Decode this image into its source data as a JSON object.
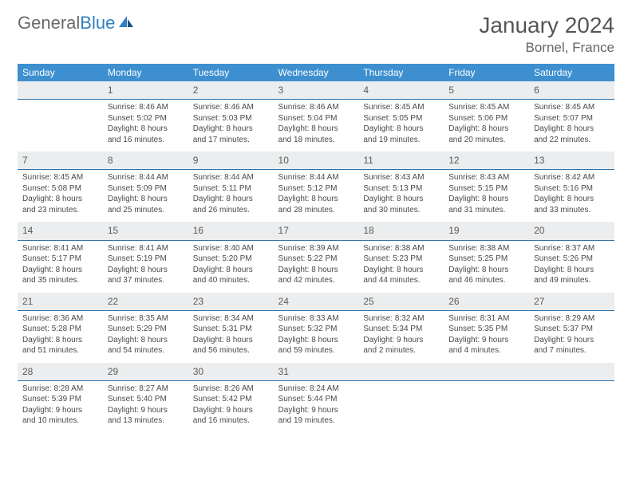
{
  "logo": {
    "word1": "General",
    "word2": "Blue"
  },
  "title": "January 2024",
  "location": "Bornel, France",
  "colors": {
    "header_bg": "#3d8fcf",
    "header_text": "#ffffff",
    "daynum_bg": "#ecedee",
    "daynum_border": "#2f72a8",
    "body_text": "#4a4a4a",
    "logo_gray": "#6a6a6a",
    "logo_blue": "#2f7fc2"
  },
  "day_headers": [
    "Sunday",
    "Monday",
    "Tuesday",
    "Wednesday",
    "Thursday",
    "Friday",
    "Saturday"
  ],
  "weeks": [
    [
      {
        "n": "",
        "l": [
          "",
          "",
          "",
          ""
        ]
      },
      {
        "n": "1",
        "l": [
          "Sunrise: 8:46 AM",
          "Sunset: 5:02 PM",
          "Daylight: 8 hours",
          "and 16 minutes."
        ]
      },
      {
        "n": "2",
        "l": [
          "Sunrise: 8:46 AM",
          "Sunset: 5:03 PM",
          "Daylight: 8 hours",
          "and 17 minutes."
        ]
      },
      {
        "n": "3",
        "l": [
          "Sunrise: 8:46 AM",
          "Sunset: 5:04 PM",
          "Daylight: 8 hours",
          "and 18 minutes."
        ]
      },
      {
        "n": "4",
        "l": [
          "Sunrise: 8:45 AM",
          "Sunset: 5:05 PM",
          "Daylight: 8 hours",
          "and 19 minutes."
        ]
      },
      {
        "n": "5",
        "l": [
          "Sunrise: 8:45 AM",
          "Sunset: 5:06 PM",
          "Daylight: 8 hours",
          "and 20 minutes."
        ]
      },
      {
        "n": "6",
        "l": [
          "Sunrise: 8:45 AM",
          "Sunset: 5:07 PM",
          "Daylight: 8 hours",
          "and 22 minutes."
        ]
      }
    ],
    [
      {
        "n": "7",
        "l": [
          "Sunrise: 8:45 AM",
          "Sunset: 5:08 PM",
          "Daylight: 8 hours",
          "and 23 minutes."
        ]
      },
      {
        "n": "8",
        "l": [
          "Sunrise: 8:44 AM",
          "Sunset: 5:09 PM",
          "Daylight: 8 hours",
          "and 25 minutes."
        ]
      },
      {
        "n": "9",
        "l": [
          "Sunrise: 8:44 AM",
          "Sunset: 5:11 PM",
          "Daylight: 8 hours",
          "and 26 minutes."
        ]
      },
      {
        "n": "10",
        "l": [
          "Sunrise: 8:44 AM",
          "Sunset: 5:12 PM",
          "Daylight: 8 hours",
          "and 28 minutes."
        ]
      },
      {
        "n": "11",
        "l": [
          "Sunrise: 8:43 AM",
          "Sunset: 5:13 PM",
          "Daylight: 8 hours",
          "and 30 minutes."
        ]
      },
      {
        "n": "12",
        "l": [
          "Sunrise: 8:43 AM",
          "Sunset: 5:15 PM",
          "Daylight: 8 hours",
          "and 31 minutes."
        ]
      },
      {
        "n": "13",
        "l": [
          "Sunrise: 8:42 AM",
          "Sunset: 5:16 PM",
          "Daylight: 8 hours",
          "and 33 minutes."
        ]
      }
    ],
    [
      {
        "n": "14",
        "l": [
          "Sunrise: 8:41 AM",
          "Sunset: 5:17 PM",
          "Daylight: 8 hours",
          "and 35 minutes."
        ]
      },
      {
        "n": "15",
        "l": [
          "Sunrise: 8:41 AM",
          "Sunset: 5:19 PM",
          "Daylight: 8 hours",
          "and 37 minutes."
        ]
      },
      {
        "n": "16",
        "l": [
          "Sunrise: 8:40 AM",
          "Sunset: 5:20 PM",
          "Daylight: 8 hours",
          "and 40 minutes."
        ]
      },
      {
        "n": "17",
        "l": [
          "Sunrise: 8:39 AM",
          "Sunset: 5:22 PM",
          "Daylight: 8 hours",
          "and 42 minutes."
        ]
      },
      {
        "n": "18",
        "l": [
          "Sunrise: 8:38 AM",
          "Sunset: 5:23 PM",
          "Daylight: 8 hours",
          "and 44 minutes."
        ]
      },
      {
        "n": "19",
        "l": [
          "Sunrise: 8:38 AM",
          "Sunset: 5:25 PM",
          "Daylight: 8 hours",
          "and 46 minutes."
        ]
      },
      {
        "n": "20",
        "l": [
          "Sunrise: 8:37 AM",
          "Sunset: 5:26 PM",
          "Daylight: 8 hours",
          "and 49 minutes."
        ]
      }
    ],
    [
      {
        "n": "21",
        "l": [
          "Sunrise: 8:36 AM",
          "Sunset: 5:28 PM",
          "Daylight: 8 hours",
          "and 51 minutes."
        ]
      },
      {
        "n": "22",
        "l": [
          "Sunrise: 8:35 AM",
          "Sunset: 5:29 PM",
          "Daylight: 8 hours",
          "and 54 minutes."
        ]
      },
      {
        "n": "23",
        "l": [
          "Sunrise: 8:34 AM",
          "Sunset: 5:31 PM",
          "Daylight: 8 hours",
          "and 56 minutes."
        ]
      },
      {
        "n": "24",
        "l": [
          "Sunrise: 8:33 AM",
          "Sunset: 5:32 PM",
          "Daylight: 8 hours",
          "and 59 minutes."
        ]
      },
      {
        "n": "25",
        "l": [
          "Sunrise: 8:32 AM",
          "Sunset: 5:34 PM",
          "Daylight: 9 hours",
          "and 2 minutes."
        ]
      },
      {
        "n": "26",
        "l": [
          "Sunrise: 8:31 AM",
          "Sunset: 5:35 PM",
          "Daylight: 9 hours",
          "and 4 minutes."
        ]
      },
      {
        "n": "27",
        "l": [
          "Sunrise: 8:29 AM",
          "Sunset: 5:37 PM",
          "Daylight: 9 hours",
          "and 7 minutes."
        ]
      }
    ],
    [
      {
        "n": "28",
        "l": [
          "Sunrise: 8:28 AM",
          "Sunset: 5:39 PM",
          "Daylight: 9 hours",
          "and 10 minutes."
        ]
      },
      {
        "n": "29",
        "l": [
          "Sunrise: 8:27 AM",
          "Sunset: 5:40 PM",
          "Daylight: 9 hours",
          "and 13 minutes."
        ]
      },
      {
        "n": "30",
        "l": [
          "Sunrise: 8:26 AM",
          "Sunset: 5:42 PM",
          "Daylight: 9 hours",
          "and 16 minutes."
        ]
      },
      {
        "n": "31",
        "l": [
          "Sunrise: 8:24 AM",
          "Sunset: 5:44 PM",
          "Daylight: 9 hours",
          "and 19 minutes."
        ]
      },
      {
        "n": "",
        "l": [
          "",
          "",
          "",
          ""
        ]
      },
      {
        "n": "",
        "l": [
          "",
          "",
          "",
          ""
        ]
      },
      {
        "n": "",
        "l": [
          "",
          "",
          "",
          ""
        ]
      }
    ]
  ]
}
